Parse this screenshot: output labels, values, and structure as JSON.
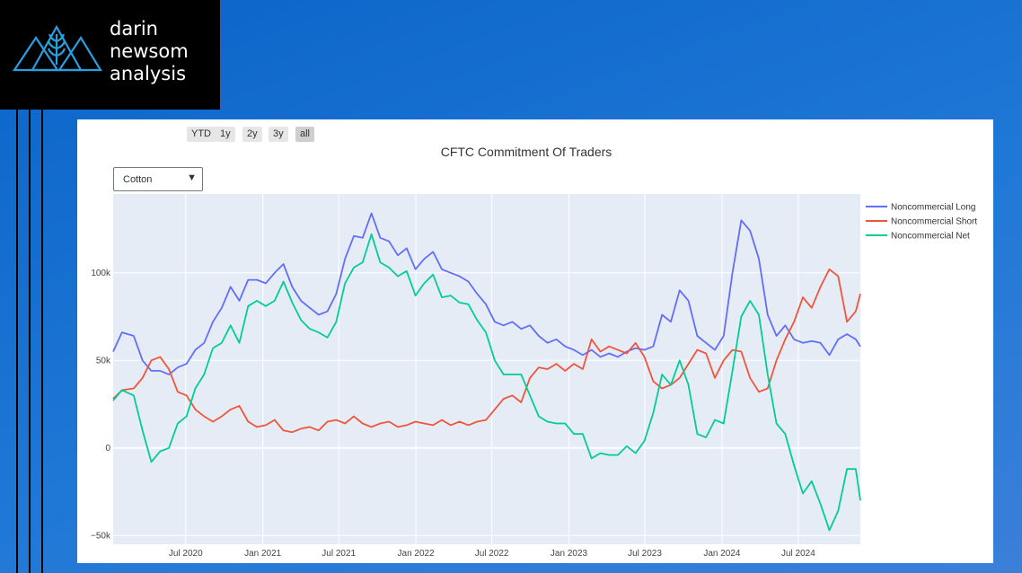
{
  "brand": {
    "line1": "darin",
    "line2": "newsom",
    "line3": "analysis"
  },
  "range_buttons": [
    "YTD",
    "1y",
    "2y",
    "3y",
    "all"
  ],
  "active_range": "all",
  "dropdown": {
    "selected": "Cotton"
  },
  "chart_data": {
    "type": "line",
    "title": "CFTC Commitment Of Traders",
    "xlabel": "",
    "ylabel": "",
    "x_range": [
      "2020-01-10",
      "2024-11-26"
    ],
    "ylim": [
      -55000,
      145000
    ],
    "y_ticks": [
      {
        "value": 100000,
        "label": "100k"
      },
      {
        "value": 50000,
        "label": "50k"
      },
      {
        "value": 0,
        "label": "0"
      },
      {
        "value": -50000,
        "label": "−50k"
      }
    ],
    "x_ticks": [
      {
        "date": "2020-07-01",
        "label": "Jul 2020"
      },
      {
        "date": "2021-01-01",
        "label": "Jan 2021"
      },
      {
        "date": "2021-07-01",
        "label": "Jul 2021"
      },
      {
        "date": "2022-01-01",
        "label": "Jan 2022"
      },
      {
        "date": "2022-07-01",
        "label": "Jul 2022"
      },
      {
        "date": "2023-01-01",
        "label": "Jan 2023"
      },
      {
        "date": "2023-07-01",
        "label": "Jul 2023"
      },
      {
        "date": "2024-01-01",
        "label": "Jan 2024"
      },
      {
        "date": "2024-07-01",
        "label": "Jul 2024"
      }
    ],
    "grid": true,
    "legend_position": "right",
    "background": "#e5ecf6",
    "series": [
      {
        "name": "Noncommercial Long",
        "color": "#636efa",
        "points": [
          [
            "2020-01-10",
            55000
          ],
          [
            "2020-01-31",
            66000
          ],
          [
            "2020-02-28",
            64000
          ],
          [
            "2020-03-20",
            50000
          ],
          [
            "2020-04-10",
            44000
          ],
          [
            "2020-05-01",
            44000
          ],
          [
            "2020-05-22",
            42000
          ],
          [
            "2020-06-12",
            46000
          ],
          [
            "2020-07-03",
            48000
          ],
          [
            "2020-07-24",
            56000
          ],
          [
            "2020-08-14",
            60000
          ],
          [
            "2020-09-04",
            72000
          ],
          [
            "2020-09-25",
            80000
          ],
          [
            "2020-10-16",
            92000
          ],
          [
            "2020-11-06",
            84000
          ],
          [
            "2020-11-27",
            96000
          ],
          [
            "2020-12-18",
            96000
          ],
          [
            "2021-01-08",
            94000
          ],
          [
            "2021-01-29",
            100000
          ],
          [
            "2021-02-19",
            105000
          ],
          [
            "2021-03-12",
            92000
          ],
          [
            "2021-04-02",
            84000
          ],
          [
            "2021-04-23",
            80000
          ],
          [
            "2021-05-14",
            76000
          ],
          [
            "2021-06-04",
            78000
          ],
          [
            "2021-06-25",
            88000
          ],
          [
            "2021-07-16",
            108000
          ],
          [
            "2021-08-06",
            121000
          ],
          [
            "2021-08-27",
            120000
          ],
          [
            "2021-09-17",
            134000
          ],
          [
            "2021-10-08",
            120000
          ],
          [
            "2021-10-29",
            118000
          ],
          [
            "2021-11-19",
            110000
          ],
          [
            "2021-12-10",
            114000
          ],
          [
            "2021-12-31",
            102000
          ],
          [
            "2022-01-21",
            108000
          ],
          [
            "2022-02-11",
            112000
          ],
          [
            "2022-03-04",
            102000
          ],
          [
            "2022-03-25",
            100000
          ],
          [
            "2022-04-15",
            98000
          ],
          [
            "2022-05-06",
            95000
          ],
          [
            "2022-05-27",
            88000
          ],
          [
            "2022-06-17",
            82000
          ],
          [
            "2022-07-08",
            72000
          ],
          [
            "2022-07-29",
            70000
          ],
          [
            "2022-08-19",
            72000
          ],
          [
            "2022-09-09",
            68000
          ],
          [
            "2022-09-30",
            70000
          ],
          [
            "2022-10-21",
            64000
          ],
          [
            "2022-11-11",
            60000
          ],
          [
            "2022-12-02",
            62000
          ],
          [
            "2022-12-23",
            58000
          ],
          [
            "2023-01-13",
            56000
          ],
          [
            "2023-02-03",
            53000
          ],
          [
            "2023-02-24",
            56000
          ],
          [
            "2023-03-17",
            52000
          ],
          [
            "2023-04-07",
            54000
          ],
          [
            "2023-04-28",
            52000
          ],
          [
            "2023-05-19",
            55000
          ],
          [
            "2023-06-09",
            57000
          ],
          [
            "2023-06-30",
            56000
          ],
          [
            "2023-07-21",
            58000
          ],
          [
            "2023-08-11",
            76000
          ],
          [
            "2023-09-01",
            72000
          ],
          [
            "2023-09-22",
            90000
          ],
          [
            "2023-10-13",
            84000
          ],
          [
            "2023-11-03",
            64000
          ],
          [
            "2023-11-24",
            60000
          ],
          [
            "2023-12-15",
            56000
          ],
          [
            "2024-01-05",
            64000
          ],
          [
            "2024-01-26",
            100000
          ],
          [
            "2024-02-16",
            130000
          ],
          [
            "2024-03-08",
            124000
          ],
          [
            "2024-03-29",
            108000
          ],
          [
            "2024-04-19",
            76000
          ],
          [
            "2024-05-10",
            64000
          ],
          [
            "2024-05-31",
            70000
          ],
          [
            "2024-06-21",
            62000
          ],
          [
            "2024-07-12",
            60000
          ],
          [
            "2024-08-02",
            61000
          ],
          [
            "2024-08-23",
            60000
          ],
          [
            "2024-09-13",
            53000
          ],
          [
            "2024-10-04",
            62000
          ],
          [
            "2024-10-25",
            65000
          ],
          [
            "2024-11-15",
            62000
          ],
          [
            "2024-11-26",
            58000
          ]
        ]
      },
      {
        "name": "Noncommercial Short",
        "color": "#ef553b",
        "points": [
          [
            "2020-01-10",
            28000
          ],
          [
            "2020-01-31",
            33000
          ],
          [
            "2020-02-28",
            34000
          ],
          [
            "2020-03-20",
            40000
          ],
          [
            "2020-04-10",
            50000
          ],
          [
            "2020-05-01",
            52000
          ],
          [
            "2020-05-22",
            45000
          ],
          [
            "2020-06-12",
            32000
          ],
          [
            "2020-07-03",
            30000
          ],
          [
            "2020-07-24",
            22000
          ],
          [
            "2020-08-14",
            18000
          ],
          [
            "2020-09-04",
            15000
          ],
          [
            "2020-09-25",
            18000
          ],
          [
            "2020-10-16",
            22000
          ],
          [
            "2020-11-06",
            24000
          ],
          [
            "2020-11-27",
            15000
          ],
          [
            "2020-12-18",
            12000
          ],
          [
            "2021-01-08",
            13000
          ],
          [
            "2021-01-29",
            16000
          ],
          [
            "2021-02-19",
            10000
          ],
          [
            "2021-03-12",
            9000
          ],
          [
            "2021-04-02",
            11000
          ],
          [
            "2021-04-23",
            12000
          ],
          [
            "2021-05-14",
            10000
          ],
          [
            "2021-06-04",
            15000
          ],
          [
            "2021-06-25",
            16000
          ],
          [
            "2021-07-16",
            14000
          ],
          [
            "2021-08-06",
            18000
          ],
          [
            "2021-08-27",
            14000
          ],
          [
            "2021-09-17",
            12000
          ],
          [
            "2021-10-08",
            14000
          ],
          [
            "2021-10-29",
            15000
          ],
          [
            "2021-11-19",
            12000
          ],
          [
            "2021-12-10",
            13000
          ],
          [
            "2021-12-31",
            15000
          ],
          [
            "2022-01-21",
            14000
          ],
          [
            "2022-02-11",
            13000
          ],
          [
            "2022-03-04",
            16000
          ],
          [
            "2022-03-25",
            13000
          ],
          [
            "2022-04-15",
            15000
          ],
          [
            "2022-05-06",
            13000
          ],
          [
            "2022-05-27",
            15000
          ],
          [
            "2022-06-17",
            16000
          ],
          [
            "2022-07-08",
            22000
          ],
          [
            "2022-07-29",
            28000
          ],
          [
            "2022-08-19",
            30000
          ],
          [
            "2022-09-09",
            26000
          ],
          [
            "2022-09-30",
            40000
          ],
          [
            "2022-10-21",
            46000
          ],
          [
            "2022-11-11",
            45000
          ],
          [
            "2022-12-02",
            48000
          ],
          [
            "2022-12-23",
            44000
          ],
          [
            "2023-01-13",
            48000
          ],
          [
            "2023-02-03",
            45000
          ],
          [
            "2023-02-24",
            62000
          ],
          [
            "2023-03-17",
            55000
          ],
          [
            "2023-04-07",
            58000
          ],
          [
            "2023-04-28",
            56000
          ],
          [
            "2023-05-19",
            54000
          ],
          [
            "2023-06-09",
            60000
          ],
          [
            "2023-06-30",
            52000
          ],
          [
            "2023-07-21",
            38000
          ],
          [
            "2023-08-11",
            34000
          ],
          [
            "2023-09-01",
            36000
          ],
          [
            "2023-09-22",
            40000
          ],
          [
            "2023-10-13",
            48000
          ],
          [
            "2023-11-03",
            56000
          ],
          [
            "2023-11-24",
            54000
          ],
          [
            "2023-12-15",
            40000
          ],
          [
            "2024-01-05",
            50000
          ],
          [
            "2024-01-26",
            56000
          ],
          [
            "2024-02-16",
            55000
          ],
          [
            "2024-03-08",
            40000
          ],
          [
            "2024-03-29",
            32000
          ],
          [
            "2024-04-19",
            34000
          ],
          [
            "2024-05-10",
            50000
          ],
          [
            "2024-05-31",
            62000
          ],
          [
            "2024-06-21",
            72000
          ],
          [
            "2024-07-12",
            86000
          ],
          [
            "2024-08-02",
            80000
          ],
          [
            "2024-08-23",
            92000
          ],
          [
            "2024-09-13",
            102000
          ],
          [
            "2024-10-04",
            98000
          ],
          [
            "2024-10-25",
            72000
          ],
          [
            "2024-11-15",
            78000
          ],
          [
            "2024-11-26",
            88000
          ]
        ]
      },
      {
        "name": "Noncommercial Net",
        "color": "#00cc96",
        "points": [
          [
            "2020-01-10",
            27000
          ],
          [
            "2020-01-31",
            33000
          ],
          [
            "2020-02-28",
            30000
          ],
          [
            "2020-03-20",
            10000
          ],
          [
            "2020-04-10",
            -8000
          ],
          [
            "2020-05-01",
            -2000
          ],
          [
            "2020-05-22",
            0
          ],
          [
            "2020-06-12",
            14000
          ],
          [
            "2020-07-03",
            18000
          ],
          [
            "2020-07-24",
            34000
          ],
          [
            "2020-08-14",
            42000
          ],
          [
            "2020-09-04",
            57000
          ],
          [
            "2020-09-25",
            60000
          ],
          [
            "2020-10-16",
            70000
          ],
          [
            "2020-11-06",
            60000
          ],
          [
            "2020-11-27",
            81000
          ],
          [
            "2020-12-18",
            84000
          ],
          [
            "2021-01-08",
            81000
          ],
          [
            "2021-01-29",
            84000
          ],
          [
            "2021-02-19",
            95000
          ],
          [
            "2021-03-12",
            83000
          ],
          [
            "2021-04-02",
            73000
          ],
          [
            "2021-04-23",
            68000
          ],
          [
            "2021-05-14",
            66000
          ],
          [
            "2021-06-04",
            63000
          ],
          [
            "2021-06-25",
            72000
          ],
          [
            "2021-07-16",
            94000
          ],
          [
            "2021-08-06",
            103000
          ],
          [
            "2021-08-27",
            106000
          ],
          [
            "2021-09-17",
            122000
          ],
          [
            "2021-10-08",
            106000
          ],
          [
            "2021-10-29",
            103000
          ],
          [
            "2021-11-19",
            98000
          ],
          [
            "2021-12-10",
            101000
          ],
          [
            "2021-12-31",
            87000
          ],
          [
            "2022-01-21",
            94000
          ],
          [
            "2022-02-11",
            99000
          ],
          [
            "2022-03-04",
            86000
          ],
          [
            "2022-03-25",
            87000
          ],
          [
            "2022-04-15",
            83000
          ],
          [
            "2022-05-06",
            82000
          ],
          [
            "2022-05-27",
            73000
          ],
          [
            "2022-06-17",
            66000
          ],
          [
            "2022-07-08",
            50000
          ],
          [
            "2022-07-29",
            42000
          ],
          [
            "2022-08-19",
            42000
          ],
          [
            "2022-09-09",
            42000
          ],
          [
            "2022-09-30",
            30000
          ],
          [
            "2022-10-21",
            18000
          ],
          [
            "2022-11-11",
            15000
          ],
          [
            "2022-12-02",
            14000
          ],
          [
            "2022-12-23",
            14000
          ],
          [
            "2023-01-13",
            8000
          ],
          [
            "2023-02-03",
            8000
          ],
          [
            "2023-02-24",
            -6000
          ],
          [
            "2023-03-17",
            -3000
          ],
          [
            "2023-04-07",
            -4000
          ],
          [
            "2023-04-28",
            -4000
          ],
          [
            "2023-05-19",
            1000
          ],
          [
            "2023-06-09",
            -3000
          ],
          [
            "2023-06-30",
            4000
          ],
          [
            "2023-07-21",
            20000
          ],
          [
            "2023-08-11",
            42000
          ],
          [
            "2023-09-01",
            36000
          ],
          [
            "2023-09-22",
            50000
          ],
          [
            "2023-10-13",
            36000
          ],
          [
            "2023-11-03",
            8000
          ],
          [
            "2023-11-24",
            6000
          ],
          [
            "2023-12-15",
            16000
          ],
          [
            "2024-01-05",
            14000
          ],
          [
            "2024-01-26",
            44000
          ],
          [
            "2024-02-16",
            75000
          ],
          [
            "2024-03-08",
            84000
          ],
          [
            "2024-03-29",
            76000
          ],
          [
            "2024-04-19",
            42000
          ],
          [
            "2024-05-10",
            14000
          ],
          [
            "2024-05-31",
            8000
          ],
          [
            "2024-06-21",
            -10000
          ],
          [
            "2024-07-12",
            -26000
          ],
          [
            "2024-08-02",
            -19000
          ],
          [
            "2024-08-23",
            -32000
          ],
          [
            "2024-09-13",
            -47000
          ],
          [
            "2024-10-04",
            -36000
          ],
          [
            "2024-10-25",
            -12000
          ],
          [
            "2024-11-15",
            -12000
          ],
          [
            "2024-11-26",
            -30000
          ]
        ]
      }
    ]
  }
}
